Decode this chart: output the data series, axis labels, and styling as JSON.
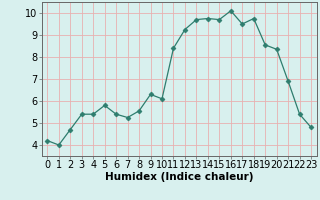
{
  "x": [
    0,
    1,
    2,
    3,
    4,
    5,
    6,
    7,
    8,
    9,
    10,
    11,
    12,
    13,
    14,
    15,
    16,
    17,
    18,
    19,
    20,
    21,
    22,
    23
  ],
  "y": [
    4.2,
    4.0,
    4.7,
    5.4,
    5.4,
    5.8,
    5.4,
    5.25,
    5.55,
    6.3,
    6.1,
    8.4,
    9.25,
    9.7,
    9.75,
    9.7,
    10.1,
    9.5,
    9.75,
    8.55,
    8.35,
    6.9,
    5.4,
    4.8
  ],
  "line_color": "#2e7d6e",
  "marker": "D",
  "marker_size": 2.5,
  "bg_color": "#d8f0ee",
  "grid_color": "#e8b0b0",
  "xlabel": "Humidex (Indice chaleur)",
  "xlim": [
    -0.5,
    23.5
  ],
  "ylim": [
    3.5,
    10.5
  ],
  "xticks": [
    0,
    1,
    2,
    3,
    4,
    5,
    6,
    7,
    8,
    9,
    10,
    11,
    12,
    13,
    14,
    15,
    16,
    17,
    18,
    19,
    20,
    21,
    22,
    23
  ],
  "yticks": [
    4,
    5,
    6,
    7,
    8,
    9,
    10
  ],
  "xlabel_fontsize": 7.5,
  "tick_fontsize": 7
}
